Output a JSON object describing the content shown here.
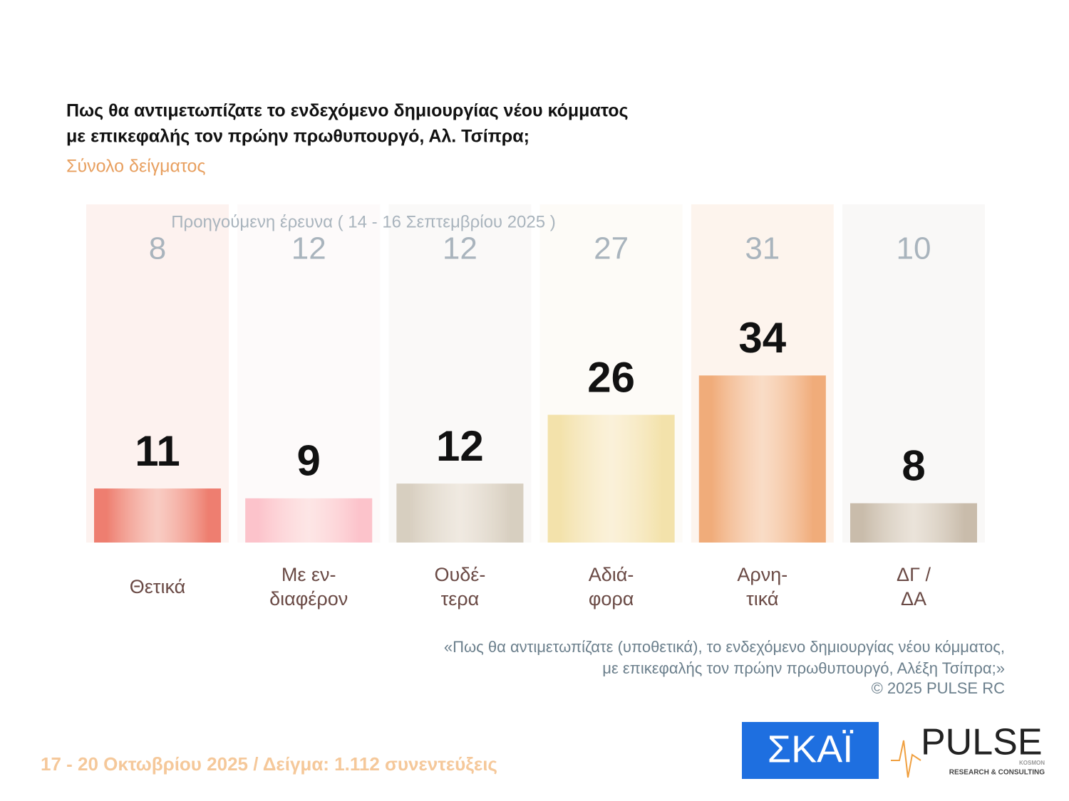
{
  "chart_data": {
    "type": "bar",
    "title": [
      "Πως θα αντιμετωπίζατε το ενδεχόμενο δημιουργίας νέου κόμματος",
      "με επικεφαλής τον πρώην πρωθυπουργό, Αλ. Τσίπρα;"
    ],
    "subtitle": "Σύνολο δείγματος",
    "categories": [
      [
        "Θετικά"
      ],
      [
        "Με εν-",
        "διαφέρον"
      ],
      [
        "Ουδέ-",
        "τερα"
      ],
      [
        "Αδιά-",
        "φορα"
      ],
      [
        "Αρνη-",
        "τικά"
      ],
      [
        "ΔΓ /",
        "ΔΑ"
      ]
    ],
    "values": [
      11,
      9,
      12,
      26,
      34,
      8
    ],
    "colors": [
      "#ee7f70",
      "#fcc3cb",
      "#d8cfc0",
      "#f3e2ab",
      "#f0ac7a",
      "#c9bcab"
    ],
    "background_colors": [
      "#fdf2ef",
      "#fdfafa",
      "#faf9f8",
      "#fdfbf7",
      "#fdf4ed",
      "#f9f8f7"
    ],
    "previous": {
      "label": "Προηγούμενη έρευνα ( 14 - 16 Σεπτεμβρίου 2025 )",
      "values": [
        8,
        12,
        12,
        27,
        31,
        10
      ]
    },
    "note": [
      "«Πως θα αντιμετωπίζατε (υποθετικά), το ενδεχόμενο δημιουργίας νέου κόμματος,",
      "με επικεφαλής τον πρώην πρωθυπουργό, Αλέξη Τσίπρα;»",
      "©  2025  PULSE RC"
    ],
    "footer": "17 - 20 Οκτωβρίου 2025  /  Δείγμα:  1.112 συνεντεύξεις",
    "logos": {
      "skai": "ΣΚΑΪ",
      "pulse": "PULSE",
      "pulse_sub": "KOSMON",
      "pulse_tag": "RESEARCH & CONSULTING"
    }
  }
}
